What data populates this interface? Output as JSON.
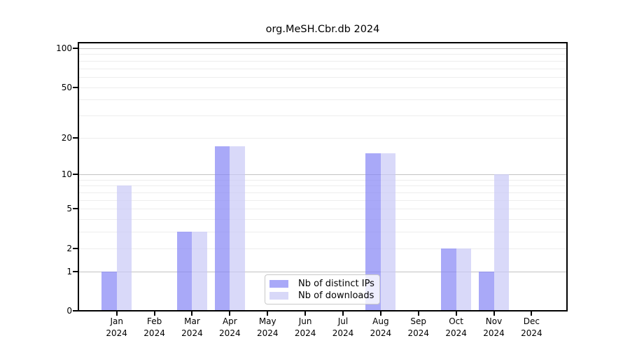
{
  "figure_title": "org.MeSH.Cbr.db 2024",
  "chart_data": {
    "type": "bar",
    "title": "org.MeSH.Cbr.db 2024",
    "categories": [
      "Jan 2024",
      "Feb 2024",
      "Mar 2024",
      "Apr 2024",
      "May 2024",
      "Jun 2024",
      "Jul 2024",
      "Aug 2024",
      "Sep 2024",
      "Oct 2024",
      "Nov 2024",
      "Dec 2024"
    ],
    "x_tick_months": [
      "Jan",
      "Feb",
      "Mar",
      "Apr",
      "May",
      "Jun",
      "Jul",
      "Aug",
      "Sep",
      "Oct",
      "Nov",
      "Dec"
    ],
    "x_tick_year": "2024",
    "series": [
      {
        "name": "Nb of distinct IPs",
        "values": [
          1,
          0,
          3,
          17,
          0,
          0,
          0,
          15,
          0,
          2,
          1,
          0
        ],
        "color": "#a9a9f8",
        "fill_rgba": "rgba(132,132,245,0.7)"
      },
      {
        "name": "Nb of downloads",
        "values": [
          8,
          0,
          3,
          17,
          0,
          0,
          0,
          15,
          0,
          2,
          10,
          0
        ],
        "color": "#d8d8f8",
        "fill_rgba": "rgba(201,201,246,0.7)"
      }
    ],
    "xlabel": "",
    "ylabel": "",
    "yscale": "log1p",
    "ylim": [
      0,
      110
    ],
    "yticks": [
      0,
      1,
      2,
      5,
      10,
      20,
      50,
      100
    ],
    "grid_major": [
      1,
      10,
      100
    ],
    "grid_minor": [
      2,
      3,
      4,
      5,
      6,
      7,
      8,
      9,
      20,
      30,
      40,
      50,
      60,
      70,
      80,
      90
    ],
    "grid": "on",
    "legend_position": "inside-bottom-center",
    "colors": {
      "axis_text": "#000000",
      "grid_major": "#c3c3c3",
      "grid_minor": "#ededed",
      "legend_border": "#c9c9c9"
    }
  }
}
